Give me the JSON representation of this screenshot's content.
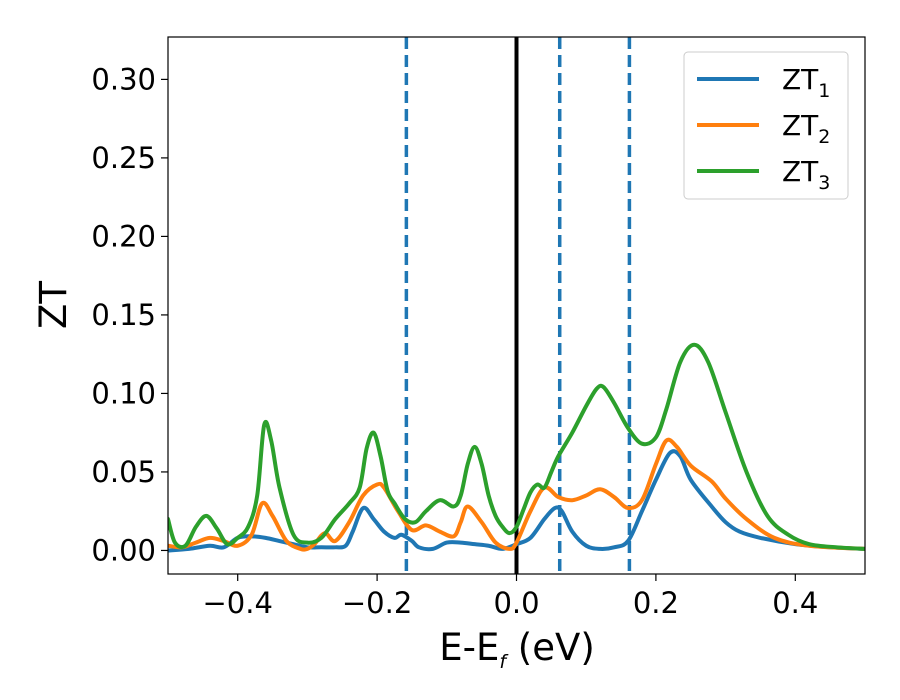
{
  "chart_data": {
    "type": "line",
    "title": "",
    "xlabel_main": "E-E",
    "xlabel_sub": "f",
    "xlabel_unit": " (eV)",
    "ylabel": "ZT",
    "xlim": [
      -0.5,
      0.5
    ],
    "ylim": [
      -0.015,
      0.327
    ],
    "xticks": [
      -0.4,
      -0.2,
      0.0,
      0.2,
      0.4
    ],
    "xtick_labels": [
      "−0.4",
      "−0.2",
      "0.0",
      "0.2",
      "0.4"
    ],
    "yticks": [
      0.0,
      0.05,
      0.1,
      0.15,
      0.2,
      0.25,
      0.3
    ],
    "ytick_labels": [
      "0.00",
      "0.05",
      "0.10",
      "0.15",
      "0.20",
      "0.25",
      "0.30"
    ],
    "grid": false,
    "legend_position": "top-right",
    "vlines": [
      {
        "x": 0.0,
        "style": "solid",
        "color": "#000000"
      },
      {
        "x": -0.158,
        "style": "dashed",
        "color": "#1f77b4"
      },
      {
        "x": 0.062,
        "style": "dashed",
        "color": "#1f77b4"
      },
      {
        "x": 0.162,
        "style": "dashed",
        "color": "#1f77b4"
      }
    ],
    "series": [
      {
        "name": "ZT",
        "name_sub": "1",
        "color": "#1f77b4",
        "x": [
          -0.5,
          -0.47,
          -0.44,
          -0.42,
          -0.4,
          -0.38,
          -0.36,
          -0.34,
          -0.32,
          -0.3,
          -0.28,
          -0.26,
          -0.245,
          -0.235,
          -0.22,
          -0.205,
          -0.19,
          -0.175,
          -0.165,
          -0.15,
          -0.14,
          -0.12,
          -0.1,
          -0.08,
          -0.06,
          -0.04,
          -0.02,
          0.0,
          0.02,
          0.04,
          0.055,
          0.065,
          0.08,
          0.1,
          0.12,
          0.14,
          0.16,
          0.18,
          0.2,
          0.22,
          0.235,
          0.25,
          0.28,
          0.3,
          0.32,
          0.35,
          0.4,
          0.45,
          0.5
        ],
        "y": [
          0.0,
          0.001,
          0.003,
          0.002,
          0.008,
          0.009,
          0.008,
          0.006,
          0.004,
          0.002,
          0.002,
          0.002,
          0.003,
          0.012,
          0.027,
          0.02,
          0.012,
          0.008,
          0.01,
          0.006,
          0.002,
          0.001,
          0.005,
          0.005,
          0.004,
          0.003,
          0.001,
          0.004,
          0.008,
          0.02,
          0.027,
          0.025,
          0.012,
          0.003,
          0.001,
          0.002,
          0.006,
          0.025,
          0.045,
          0.062,
          0.06,
          0.045,
          0.028,
          0.018,
          0.012,
          0.008,
          0.004,
          0.002,
          0.001
        ]
      },
      {
        "name": "ZT",
        "name_sub": "2",
        "color": "#ff7f0e",
        "x": [
          -0.5,
          -0.48,
          -0.46,
          -0.44,
          -0.42,
          -0.4,
          -0.38,
          -0.365,
          -0.35,
          -0.33,
          -0.31,
          -0.3,
          -0.29,
          -0.275,
          -0.26,
          -0.24,
          -0.22,
          -0.2,
          -0.19,
          -0.17,
          -0.15,
          -0.13,
          -0.11,
          -0.09,
          -0.08,
          -0.07,
          -0.05,
          -0.03,
          -0.01,
          0.0,
          0.02,
          0.04,
          0.06,
          0.08,
          0.1,
          0.12,
          0.14,
          0.16,
          0.18,
          0.2,
          0.215,
          0.23,
          0.25,
          0.28,
          0.3,
          0.33,
          0.37,
          0.42,
          0.5
        ],
        "y": [
          0.003,
          0.002,
          0.005,
          0.008,
          0.006,
          0.003,
          0.01,
          0.03,
          0.022,
          0.006,
          0.001,
          0.001,
          0.004,
          0.011,
          0.006,
          0.018,
          0.035,
          0.042,
          0.04,
          0.025,
          0.013,
          0.016,
          0.012,
          0.009,
          0.018,
          0.028,
          0.018,
          0.005,
          0.001,
          0.005,
          0.025,
          0.04,
          0.034,
          0.032,
          0.035,
          0.039,
          0.034,
          0.027,
          0.032,
          0.055,
          0.07,
          0.066,
          0.054,
          0.044,
          0.033,
          0.02,
          0.008,
          0.003,
          0.001
        ]
      },
      {
        "name": "ZT",
        "name_sub": "3",
        "color": "#2ca02c",
        "x": [
          -0.5,
          -0.49,
          -0.475,
          -0.46,
          -0.445,
          -0.43,
          -0.415,
          -0.4,
          -0.385,
          -0.372,
          -0.362,
          -0.352,
          -0.34,
          -0.32,
          -0.3,
          -0.28,
          -0.26,
          -0.24,
          -0.225,
          -0.215,
          -0.205,
          -0.195,
          -0.185,
          -0.175,
          -0.16,
          -0.145,
          -0.13,
          -0.11,
          -0.09,
          -0.08,
          -0.07,
          -0.06,
          -0.05,
          -0.04,
          -0.03,
          -0.02,
          -0.01,
          0.0,
          0.01,
          0.02,
          0.03,
          0.04,
          0.05,
          0.06,
          0.08,
          0.1,
          0.115,
          0.125,
          0.14,
          0.16,
          0.18,
          0.2,
          0.215,
          0.235,
          0.255,
          0.275,
          0.3,
          0.33,
          0.36,
          0.39,
          0.42,
          0.46,
          0.5
        ],
        "y": [
          0.02,
          0.005,
          0.003,
          0.015,
          0.022,
          0.014,
          0.004,
          0.008,
          0.015,
          0.035,
          0.08,
          0.07,
          0.04,
          0.01,
          0.005,
          0.008,
          0.02,
          0.03,
          0.04,
          0.065,
          0.075,
          0.06,
          0.038,
          0.03,
          0.02,
          0.018,
          0.025,
          0.032,
          0.028,
          0.035,
          0.055,
          0.066,
          0.055,
          0.035,
          0.022,
          0.015,
          0.011,
          0.015,
          0.026,
          0.037,
          0.042,
          0.04,
          0.05,
          0.06,
          0.075,
          0.092,
          0.103,
          0.104,
          0.094,
          0.078,
          0.068,
          0.072,
          0.09,
          0.12,
          0.131,
          0.12,
          0.088,
          0.05,
          0.022,
          0.01,
          0.004,
          0.002,
          0.001
        ]
      }
    ]
  }
}
